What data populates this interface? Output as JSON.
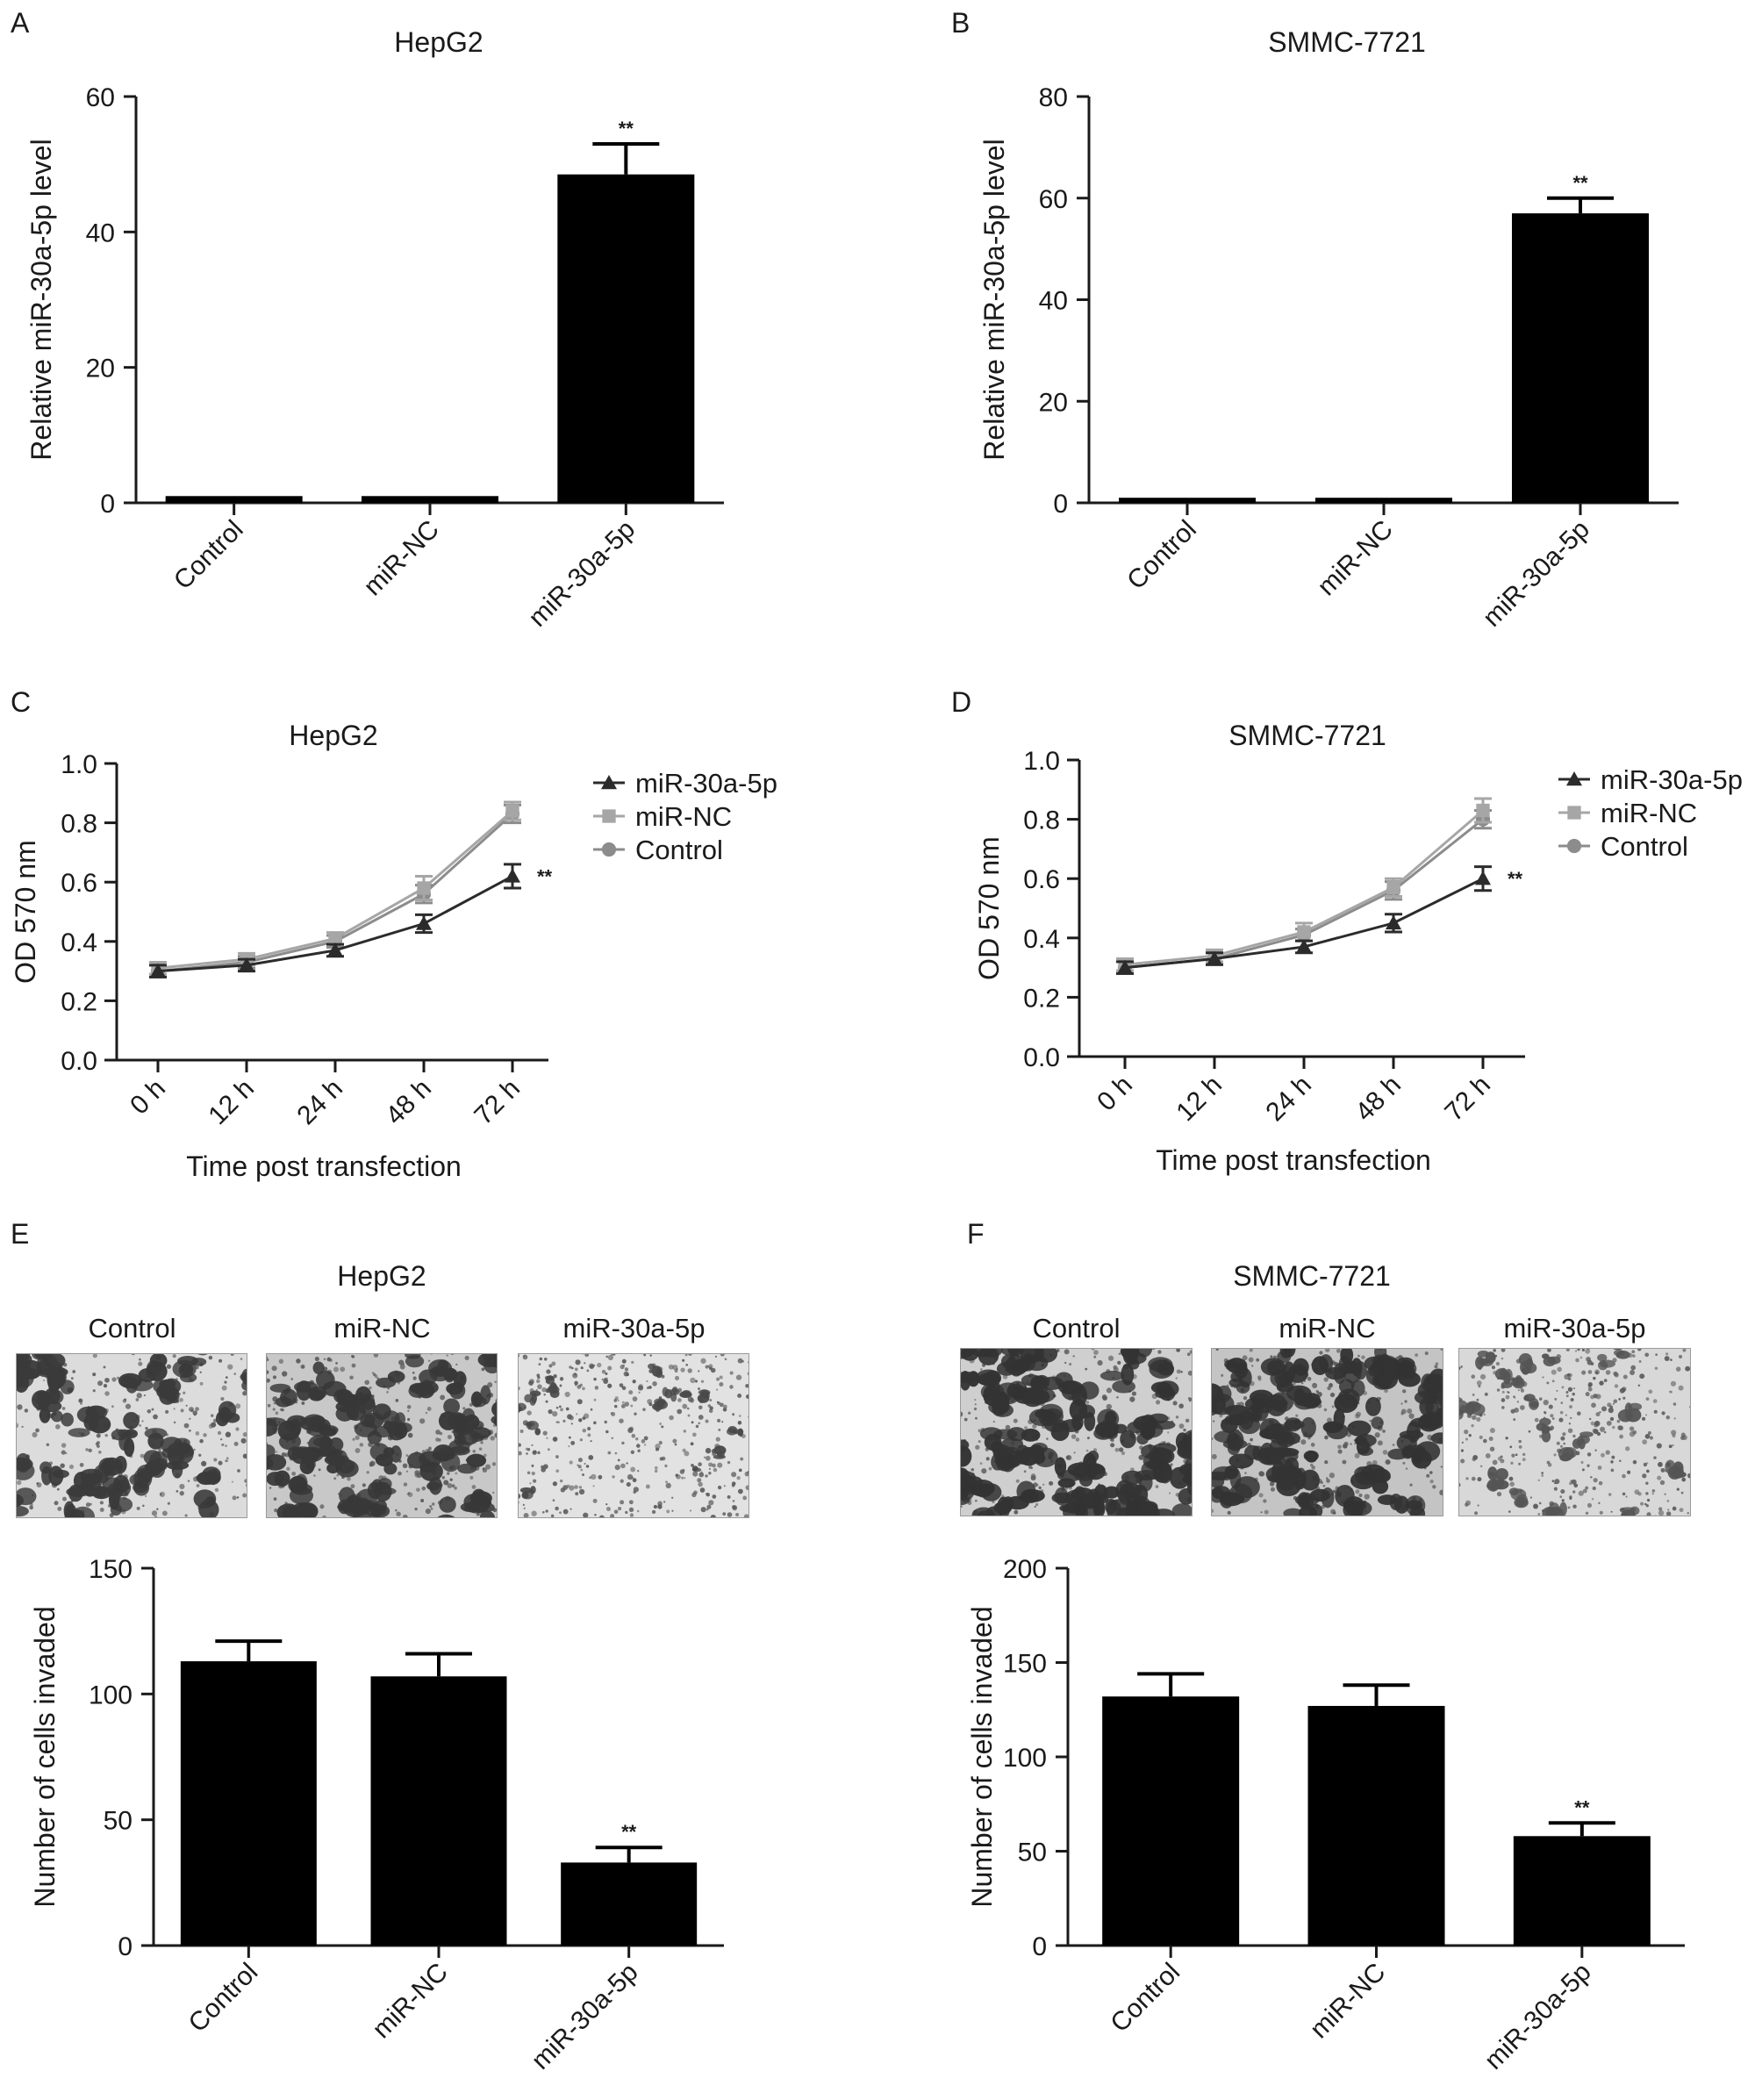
{
  "panels": {
    "A": {
      "label": "A",
      "title": "HepG2"
    },
    "B": {
      "label": "B",
      "title": "SMMC-7721"
    },
    "C": {
      "label": "C",
      "title": "HepG2"
    },
    "D": {
      "label": "D",
      "title": "SMMC-7721"
    },
    "E": {
      "label": "E",
      "title": "HepG2",
      "images": [
        "Control",
        "miR-NC",
        "miR-30a-5p"
      ]
    },
    "F": {
      "label": "F",
      "title": "SMMC-7721",
      "images": [
        "Control",
        "miR-NC",
        "miR-30a-5p"
      ]
    }
  },
  "colors": {
    "bar": "#000000",
    "line_mir30a": "#2b2b2b",
    "line_mirnc": "#a6a6a6",
    "line_control": "#8c8c8c"
  },
  "chart_data": [
    {
      "id": "A",
      "type": "bar",
      "title": "HepG2",
      "categories": [
        "Control",
        "miR-NC",
        "miR-30a-5p"
      ],
      "values": [
        1,
        1,
        48.5
      ],
      "errors": [
        0.1,
        0.1,
        4.5
      ],
      "significance": [
        "",
        "",
        "**"
      ],
      "ylabel": "Relative miR-30a-5p level",
      "xlabel": "",
      "ylim": [
        0,
        60
      ],
      "yticks": [
        0,
        20,
        40,
        60
      ]
    },
    {
      "id": "B",
      "type": "bar",
      "title": "SMMC-7721",
      "categories": [
        "Control",
        "miR-NC",
        "miR-30a-5p"
      ],
      "values": [
        1,
        1,
        57
      ],
      "errors": [
        0.1,
        0.1,
        3
      ],
      "significance": [
        "",
        "",
        "**"
      ],
      "ylabel": "Relative miR-30a-5p level",
      "xlabel": "",
      "ylim": [
        0,
        80
      ],
      "yticks": [
        0,
        20,
        40,
        60,
        80
      ]
    },
    {
      "id": "C",
      "type": "line",
      "title": "HepG2",
      "x": [
        "0 h",
        "12 h",
        "24 h",
        "48 h",
        "72 h"
      ],
      "series": [
        {
          "name": "miR-30a-5p",
          "marker": "triangle",
          "values": [
            0.3,
            0.32,
            0.37,
            0.46,
            0.62
          ],
          "errors": [
            0.02,
            0.02,
            0.02,
            0.03,
            0.04
          ]
        },
        {
          "name": "miR-NC",
          "marker": "square",
          "values": [
            0.31,
            0.34,
            0.41,
            0.58,
            0.84
          ],
          "errors": [
            0.02,
            0.02,
            0.02,
            0.04,
            0.03
          ]
        },
        {
          "name": "Control",
          "marker": "circle",
          "values": [
            0.3,
            0.33,
            0.4,
            0.56,
            0.83
          ],
          "errors": [
            0.02,
            0.02,
            0.02,
            0.03,
            0.03
          ]
        }
      ],
      "significance": "**",
      "xlabel": "Time post transfection",
      "ylabel": "OD 570 nm",
      "ylim": [
        0.0,
        1.0
      ],
      "yticks": [
        "0.0",
        "0.2",
        "0.4",
        "0.6",
        "0.8",
        "1.0"
      ],
      "legend": "right"
    },
    {
      "id": "D",
      "type": "line",
      "title": "SMMC-7721",
      "x": [
        "0 h",
        "12 h",
        "24 h",
        "48 h",
        "72 h"
      ],
      "series": [
        {
          "name": "miR-30a-5p",
          "marker": "triangle",
          "values": [
            0.3,
            0.33,
            0.37,
            0.45,
            0.6
          ],
          "errors": [
            0.02,
            0.02,
            0.02,
            0.03,
            0.04
          ]
        },
        {
          "name": "miR-NC",
          "marker": "square",
          "values": [
            0.31,
            0.34,
            0.42,
            0.57,
            0.83
          ],
          "errors": [
            0.02,
            0.02,
            0.03,
            0.03,
            0.04
          ]
        },
        {
          "name": "Control",
          "marker": "circle",
          "values": [
            0.3,
            0.33,
            0.41,
            0.56,
            0.8
          ],
          "errors": [
            0.02,
            0.02,
            0.02,
            0.03,
            0.03
          ]
        }
      ],
      "significance": "**",
      "xlabel": "Time post transfection",
      "ylabel": "OD 570 nm",
      "ylim": [
        0.0,
        1.0
      ],
      "yticks": [
        "0.0",
        "0.2",
        "0.4",
        "0.6",
        "0.8",
        "1.0"
      ],
      "legend": "right"
    },
    {
      "id": "E",
      "type": "bar",
      "title": "HepG2",
      "categories": [
        "Control",
        "miR-NC",
        "miR-30a-5p"
      ],
      "values": [
        113,
        107,
        33
      ],
      "errors": [
        8,
        9,
        6
      ],
      "significance": [
        "",
        "",
        "**"
      ],
      "ylabel": "Number of cells invaded",
      "xlabel": "",
      "ylim": [
        0,
        150
      ],
      "yticks": [
        0,
        50,
        100,
        150
      ]
    },
    {
      "id": "F",
      "type": "bar",
      "title": "SMMC-7721",
      "categories": [
        "Control",
        "miR-NC",
        "miR-30a-5p"
      ],
      "values": [
        132,
        127,
        58
      ],
      "errors": [
        12,
        11,
        7
      ],
      "significance": [
        "",
        "",
        "**"
      ],
      "ylabel": "Number of cells invaded",
      "xlabel": "",
      "ylim": [
        0,
        200
      ],
      "yticks": [
        0,
        50,
        100,
        150,
        200
      ]
    }
  ]
}
